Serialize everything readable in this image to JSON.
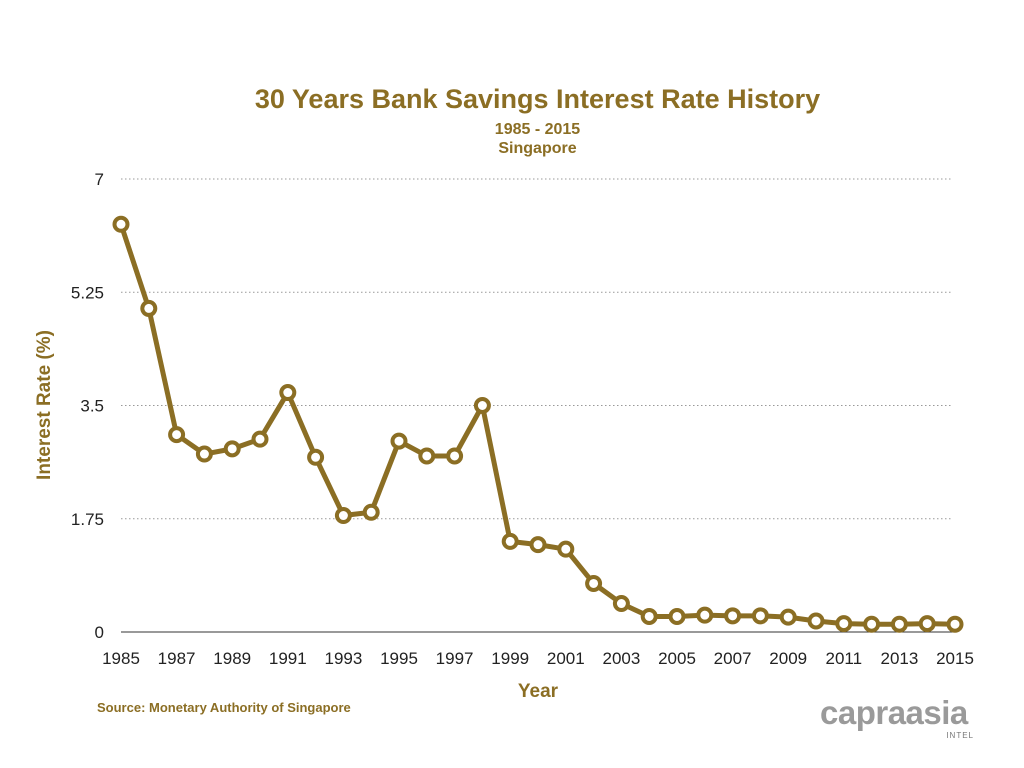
{
  "chart_data": {
    "type": "line",
    "title": "30 Years Bank Savings Interest Rate History",
    "subtitle": [
      "1985 - 2015",
      "Singapore"
    ],
    "xlabel": "Year",
    "ylabel": "Interest Rate (%)",
    "ylim": [
      0,
      7
    ],
    "yticks": [
      "0",
      "1.75",
      "3.5",
      "5.25",
      "7"
    ],
    "xticks": [
      "1985",
      "1987",
      "1989",
      "1991",
      "1993",
      "1995",
      "1997",
      "1999",
      "2001",
      "2003",
      "2005",
      "2007",
      "2009",
      "2011",
      "2013",
      "2015"
    ],
    "grid": true,
    "x": [
      1985,
      1986,
      1987,
      1988,
      1989,
      1990,
      1991,
      1992,
      1993,
      1994,
      1995,
      1996,
      1997,
      1998,
      1999,
      2000,
      2001,
      2002,
      2003,
      2004,
      2005,
      2006,
      2007,
      2008,
      2009,
      2010,
      2011,
      2012,
      2013,
      2014,
      2015
    ],
    "series": [
      {
        "values": [
          6.3,
          5.0,
          3.05,
          2.75,
          2.83,
          2.98,
          3.7,
          2.7,
          1.8,
          1.85,
          2.95,
          2.72,
          2.72,
          3.5,
          1.4,
          1.35,
          1.28,
          0.75,
          0.44,
          0.24,
          0.24,
          0.26,
          0.25,
          0.25,
          0.23,
          0.17,
          0.13,
          0.12,
          0.12,
          0.13,
          0.12
        ]
      }
    ],
    "color": "#8b6e24"
  },
  "source": "Source: Monetary Authority of Singapore",
  "logo": {
    "text": "capraasia",
    "subtext": "INTEL"
  }
}
